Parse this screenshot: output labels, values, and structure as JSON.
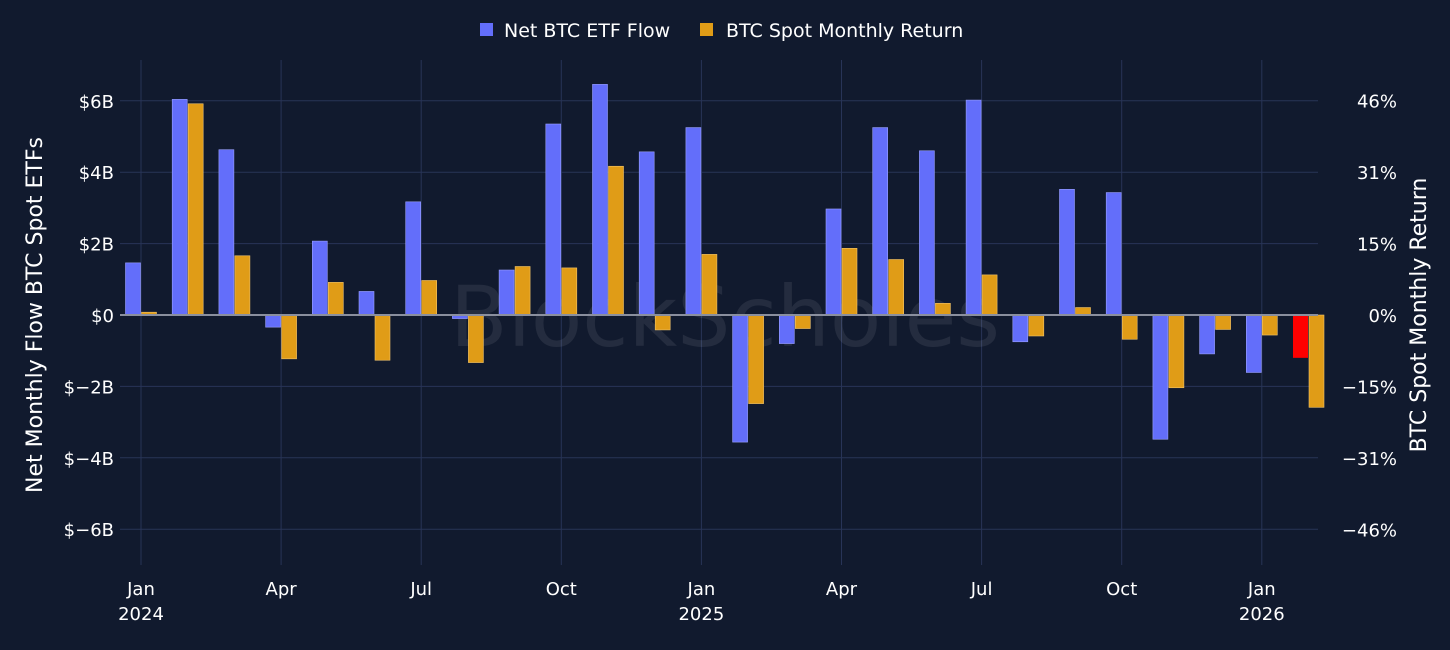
{
  "chart_data": {
    "type": "bar",
    "watermark": "BlockScholes",
    "legend": [
      {
        "name": "Net BTC ETF Flow",
        "color": "#636efa"
      },
      {
        "name": "BTC Spot Monthly Return",
        "color": "#e09c17"
      }
    ],
    "highlight_color": "#ff0000",
    "y_left": {
      "title": "Net Monthly Flow BTC Spot ETFs",
      "range": [
        -7,
        7.2
      ],
      "ticks": [
        6,
        4,
        2,
        0,
        -2,
        -4,
        -6
      ],
      "tick_labels": [
        "$6B",
        "$4B",
        "$2B",
        "$0",
        "$−2B",
        "$−4B",
        "$−6B"
      ]
    },
    "y_right": {
      "title": "BTC Spot Monthly Return",
      "ticks": [
        46,
        31,
        15,
        0,
        -15,
        -31,
        -46
      ],
      "tick_labels": [
        "46%",
        "31%",
        "15%",
        "0%",
        "−15%",
        "−31%",
        "−46%"
      ]
    },
    "x_ticks": [
      {
        "month": 0,
        "label": "Jan",
        "year": "2024"
      },
      {
        "month": 3,
        "label": "Apr",
        "year": ""
      },
      {
        "month": 6,
        "label": "Jul",
        "year": ""
      },
      {
        "month": 9,
        "label": "Oct",
        "year": ""
      },
      {
        "month": 12,
        "label": "Jan",
        "year": "2025"
      },
      {
        "month": 15,
        "label": "Apr",
        "year": ""
      },
      {
        "month": 18,
        "label": "Jul",
        "year": ""
      },
      {
        "month": 21,
        "label": "Oct",
        "year": ""
      },
      {
        "month": 24,
        "label": "Jan",
        "year": "2026"
      }
    ],
    "months": [
      "Jan 2024",
      "Feb 2024",
      "Mar 2024",
      "Apr 2024",
      "May 2024",
      "Jun 2024",
      "Jul 2024",
      "Aug 2024",
      "Sep 2024",
      "Oct 2024",
      "Nov 2024",
      "Dec 2024",
      "Jan 2025",
      "Feb 2025",
      "Mar 2025",
      "Apr 2025",
      "May 2025",
      "Jun 2025",
      "Jul 2025",
      "Aug 2025",
      "Sep 2025",
      "Oct 2025",
      "Nov 2025",
      "Dec 2025",
      "Jan 2026",
      "Feb 2026"
    ],
    "series": [
      {
        "name": "Net BTC ETF Flow",
        "unit": "$B",
        "values": [
          1.46,
          6.04,
          4.63,
          -0.34,
          2.07,
          0.66,
          3.17,
          -0.1,
          1.26,
          5.35,
          6.46,
          4.57,
          5.25,
          -3.56,
          -0.8,
          2.97,
          5.25,
          4.6,
          6.02,
          -0.75,
          3.52,
          3.43,
          -3.48,
          -1.09,
          -1.61,
          -1.2
        ],
        "highlight_index": 25
      },
      {
        "name": "BTC Spot Monthly Return",
        "unit": "%",
        "values": [
          0.6,
          45.3,
          12.7,
          -9.4,
          7.0,
          -9.7,
          7.4,
          -10.2,
          10.4,
          10.1,
          31.9,
          -3.2,
          13.0,
          -19.0,
          -2.9,
          14.3,
          11.9,
          2.5,
          8.6,
          -4.5,
          1.6,
          -5.2,
          -15.6,
          -3.1,
          -4.3,
          -19.8
        ]
      }
    ]
  }
}
